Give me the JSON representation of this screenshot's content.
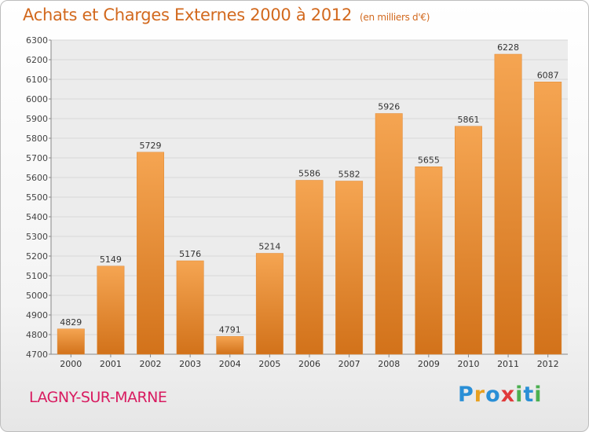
{
  "header": {
    "title": "Achats et Charges Externes 2000 à 2012",
    "subtitle": "(en milliers d'€)"
  },
  "footer": {
    "town": "LAGNY-SUR-MARNE",
    "logo": "Proxiti",
    "logo_letters": [
      "P",
      "r",
      "o",
      "x",
      "i",
      "t",
      "i"
    ],
    "logo_colors": [
      "#2a8fd6",
      "#e8a020",
      "#2a8fd6",
      "#e03a3a",
      "#4caf50",
      "#2a8fd6",
      "#4caf50"
    ]
  },
  "colors": {
    "bar_top": "#f5a552",
    "bar_bottom": "#d2721a",
    "accent": "#d2691e",
    "grid": "#d8d8d8"
  },
  "chart_data": {
    "type": "bar",
    "title": "Achats et Charges Externes 2000 à 2012",
    "subtitle": "(en milliers d'€)",
    "categories": [
      "2000",
      "2001",
      "2002",
      "2003",
      "2004",
      "2005",
      "2006",
      "2007",
      "2008",
      "2009",
      "2010",
      "2011",
      "2012"
    ],
    "values": [
      4829,
      5149,
      5729,
      5176,
      4791,
      5214,
      5586,
      5582,
      5926,
      5655,
      5861,
      6228,
      6087
    ],
    "ylim": [
      4700,
      6300
    ],
    "yticks": [
      4700,
      4800,
      4900,
      5000,
      5100,
      5200,
      5300,
      5400,
      5500,
      5600,
      5700,
      5800,
      5900,
      6000,
      6100,
      6200,
      6300
    ],
    "xlabel": "",
    "ylabel": "",
    "grid": true,
    "data_labels": true
  }
}
